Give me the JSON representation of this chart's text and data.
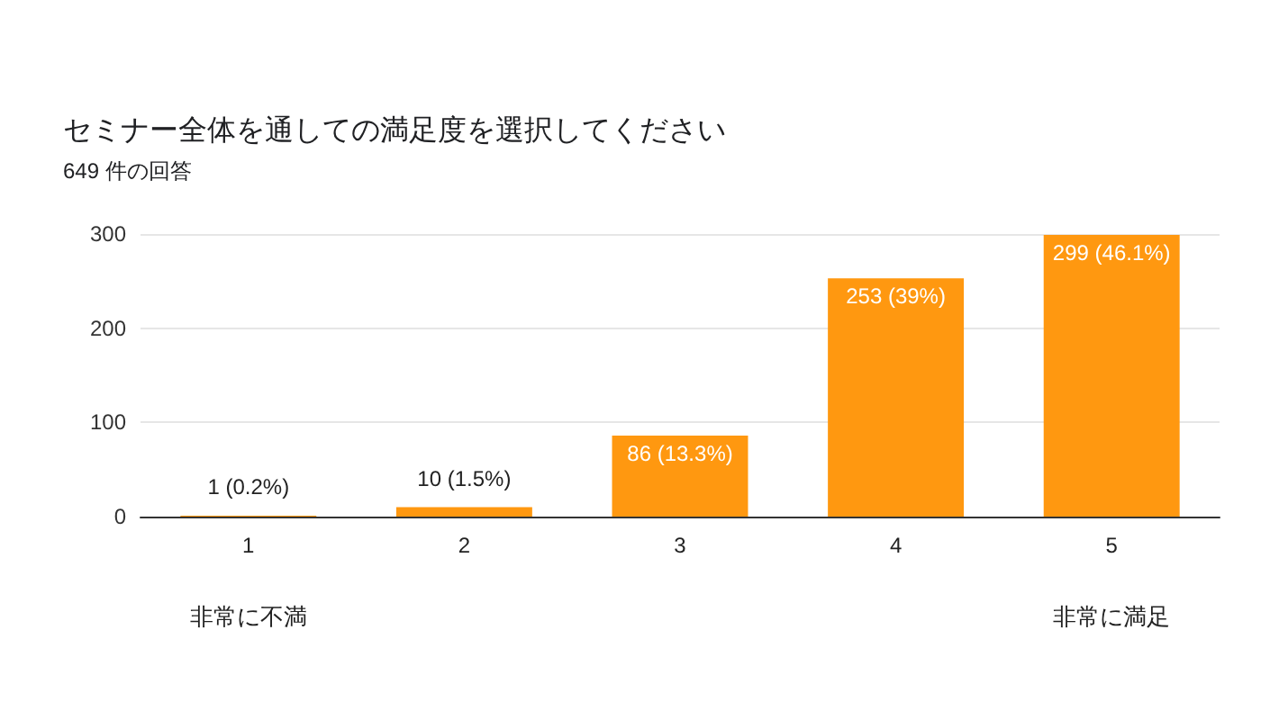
{
  "chart_data": {
    "type": "bar",
    "title": "セミナー全体を通しての満足度を選択してください",
    "subtitle": "649 件の回答",
    "categories": [
      "1",
      "2",
      "3",
      "4",
      "5"
    ],
    "values": [
      1,
      10,
      86,
      253,
      299
    ],
    "value_labels": [
      "1 (0.2%)",
      "10 (1.5%)",
      "86 (13.3%)",
      "253 (39%)",
      "299 (46.1%)"
    ],
    "color": "#ff9810",
    "ylim": [
      0,
      300
    ],
    "yticks": [
      0,
      100,
      200,
      300
    ],
    "grid": "y",
    "annotations": [
      "非常に不満",
      "非常に満足"
    ]
  }
}
